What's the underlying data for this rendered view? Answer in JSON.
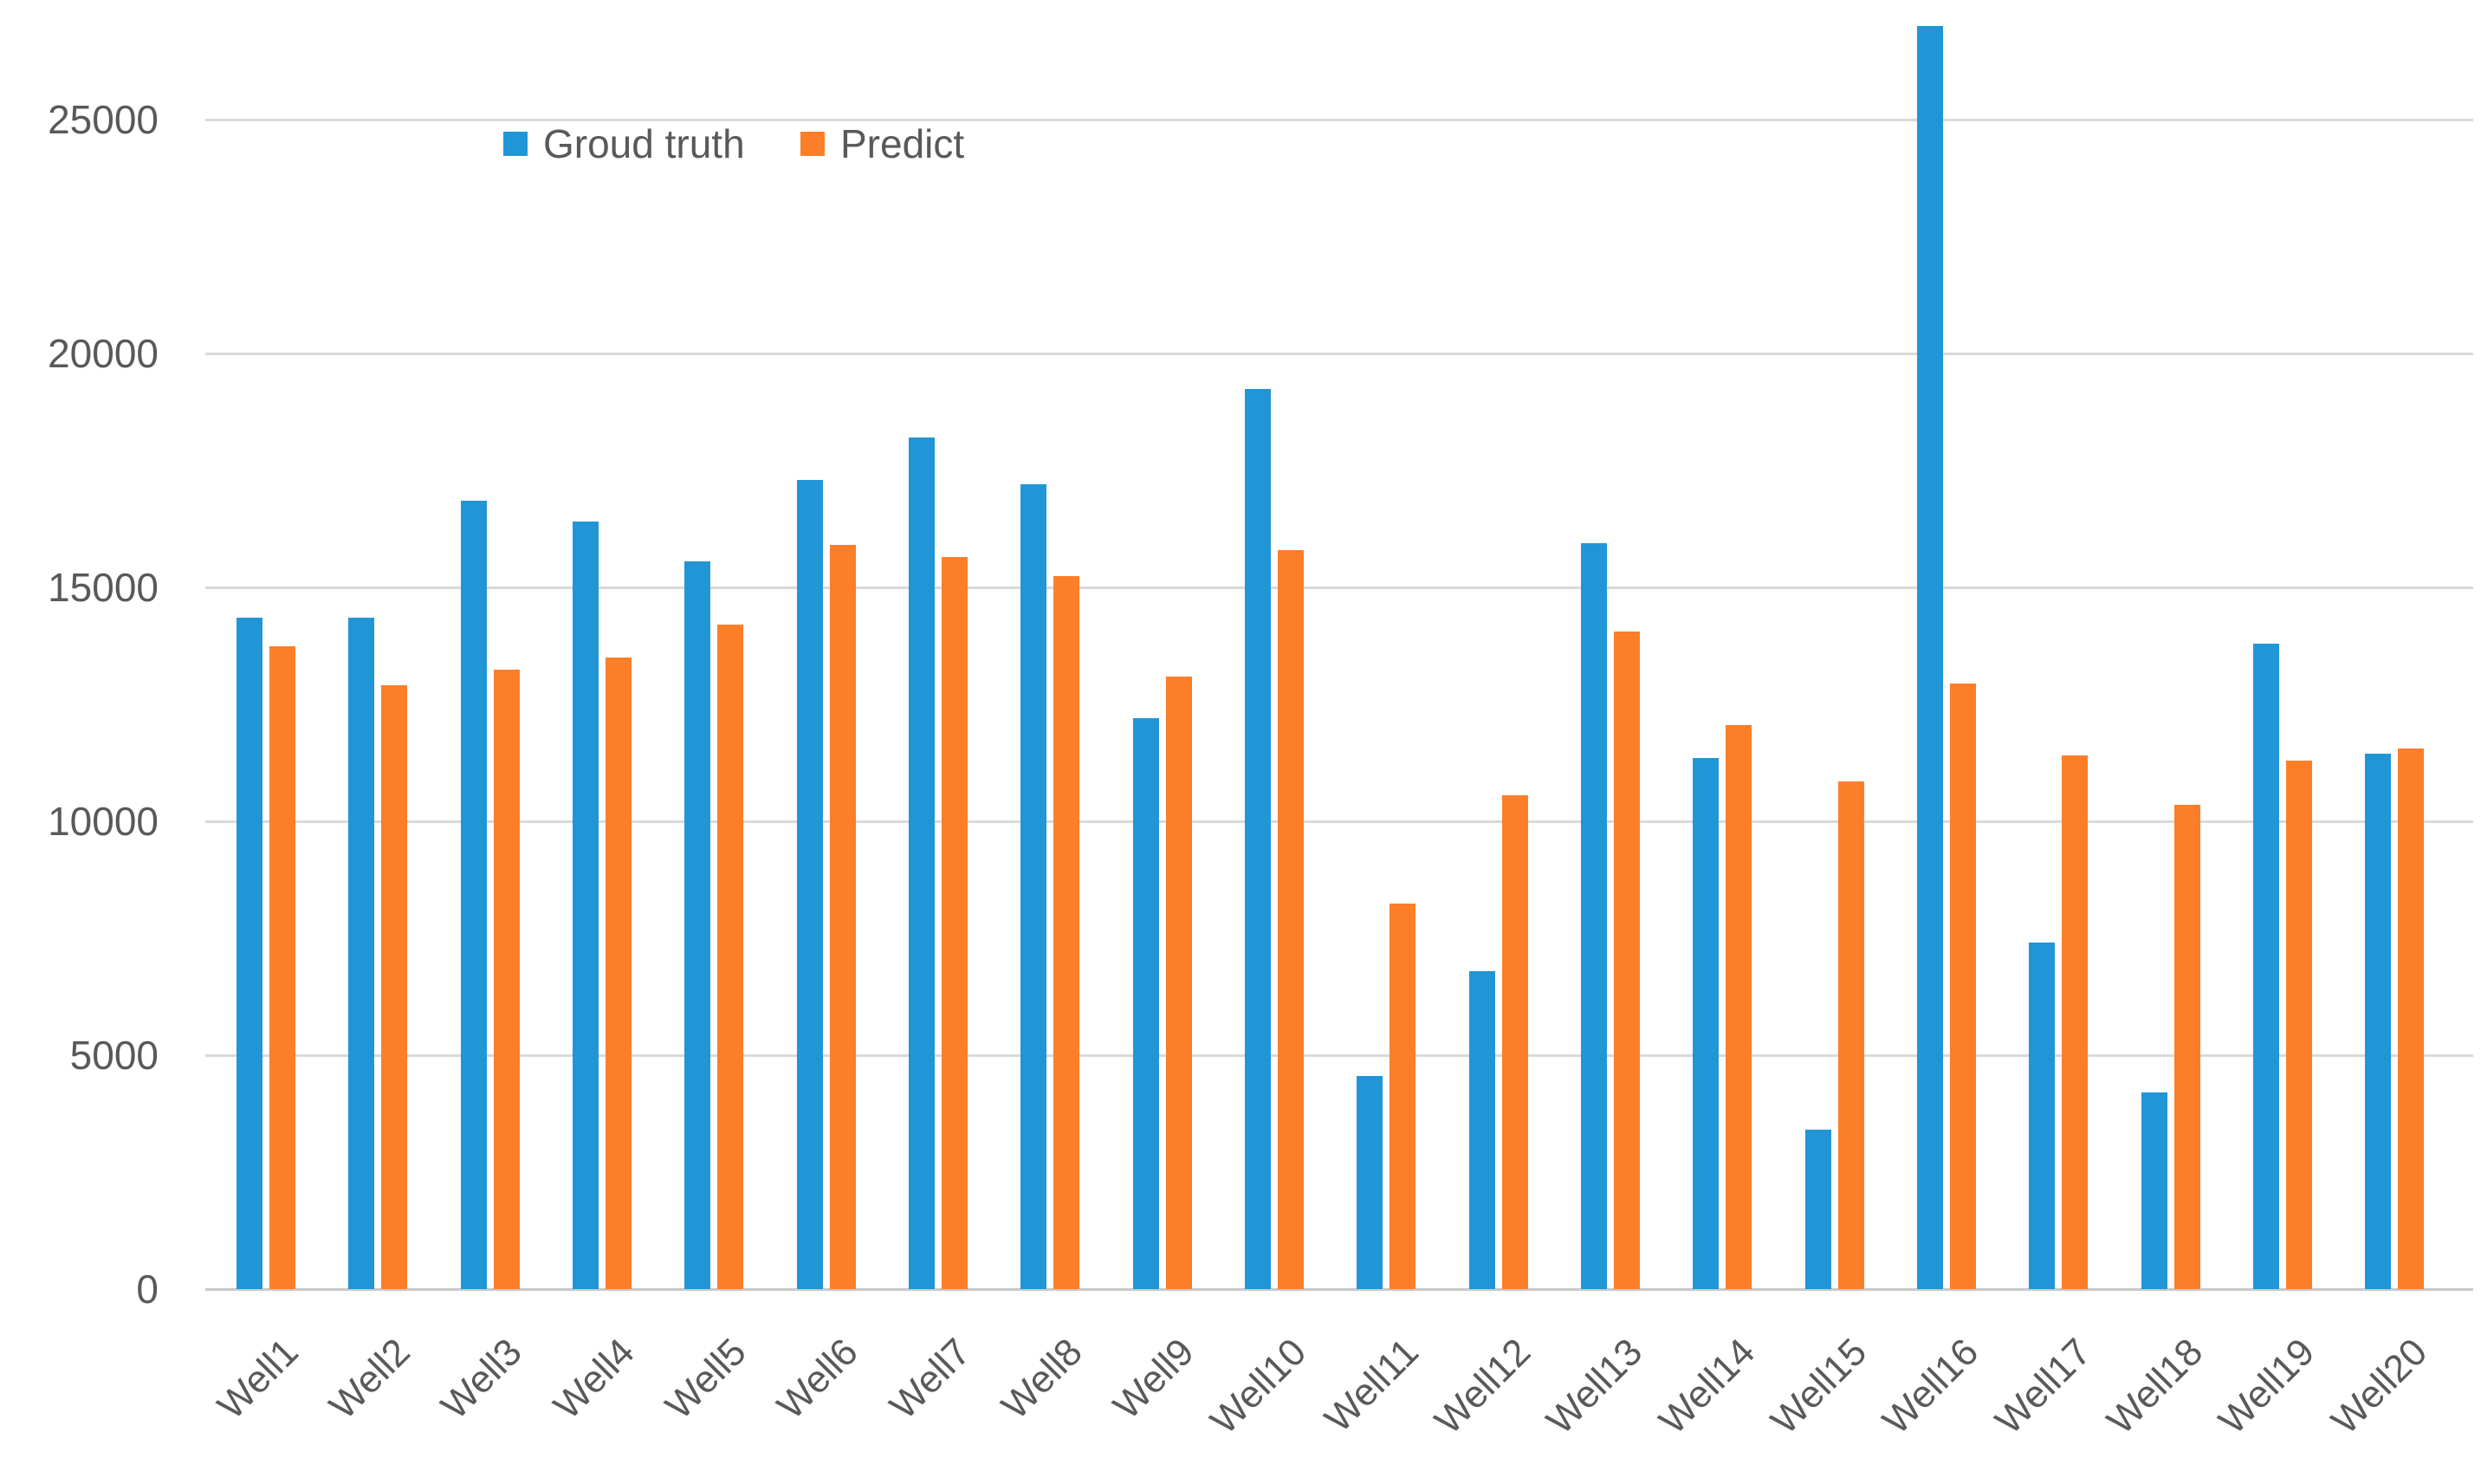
{
  "chart_data": {
    "type": "bar",
    "title": "",
    "xlabel": "",
    "ylabel": "",
    "categories": [
      "Well1",
      "Well2",
      "Well3",
      "Well4",
      "Well5",
      "Well6",
      "Well7",
      "Well8",
      "Well9",
      "Well10",
      "Well11",
      "Well12",
      "Well13",
      "Well14",
      "Well15",
      "Well16",
      "Well17",
      "Well18",
      "Well19",
      "Well20"
    ],
    "series": [
      {
        "name": "Groud truth",
        "color": "#2196d6",
        "values": [
          14350,
          14350,
          16850,
          16400,
          15550,
          17300,
          18200,
          17200,
          12200,
          19250,
          4550,
          6800,
          15950,
          11350,
          3400,
          27000,
          7400,
          4200,
          13800,
          11450
        ]
      },
      {
        "name": "Predict",
        "color": "#fd7e28",
        "values": [
          13750,
          12900,
          13250,
          13500,
          14200,
          15900,
          15650,
          15250,
          13100,
          15800,
          8250,
          10550,
          14050,
          12050,
          10850,
          12950,
          11400,
          10350,
          11300,
          11550
        ]
      }
    ],
    "yticks": [
      0,
      5000,
      10000,
      15000,
      20000,
      25000
    ],
    "ylim": [
      0,
      27500
    ],
    "grid": true,
    "legend_position": "top-inside-left",
    "gridline_color": "#d9d9d9",
    "axis_line_color": "#c9c9c9",
    "text_color": "#595959",
    "background_color": "#ffffff"
  }
}
